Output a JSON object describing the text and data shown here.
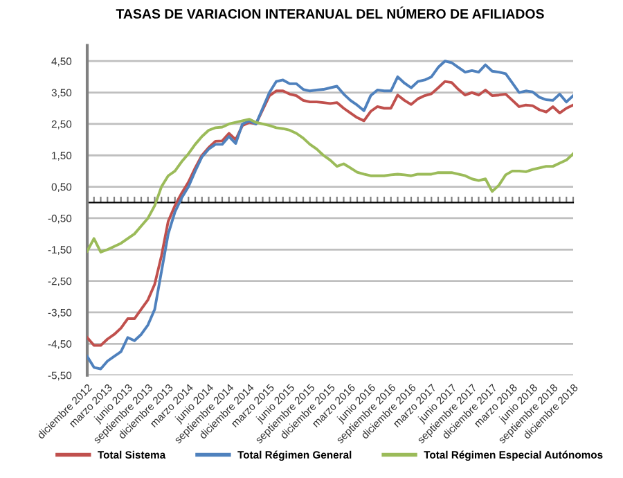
{
  "chart_data": {
    "type": "line",
    "title": "TASAS DE VARIACION INTERANUAL DEL NÚMERO DE AFILIADOS",
    "categories": [
      "diciembre 2012",
      null,
      null,
      "marzo 2013",
      null,
      null,
      "junio 2013",
      null,
      null,
      "septiembre 2013",
      null,
      null,
      "diciembre 2013",
      null,
      null,
      "marzo 2014",
      null,
      null,
      "junio 2014",
      null,
      null,
      "septiembre 2014",
      null,
      null,
      "diciembre 2014",
      null,
      null,
      "marzo 2015",
      null,
      null,
      "junio 2015",
      null,
      null,
      "septiembre 2015",
      null,
      null,
      "diciembre 2015",
      null,
      null,
      "marzo 2016",
      null,
      null,
      "junio 2016",
      null,
      null,
      "septiembre 2016",
      null,
      null,
      "diciembre 2016",
      null,
      null,
      "marzo 2017",
      null,
      null,
      "junio 2017",
      null,
      null,
      "septiembre 2017",
      null,
      null,
      "diciembre 2017",
      null,
      null,
      "marzo 2018",
      null,
      null,
      "junio 2018",
      null,
      null,
      "septiembre 2018",
      null,
      null,
      "diciembre 2018"
    ],
    "series": [
      {
        "name": "Total Sistema",
        "color": "#c0504d",
        "values": [
          -4.3,
          -4.55,
          -4.55,
          -4.35,
          -4.2,
          -4.0,
          -3.7,
          -3.7,
          -3.4,
          -3.1,
          -2.6,
          -1.7,
          -0.6,
          -0.1,
          0.3,
          0.65,
          1.1,
          1.5,
          1.75,
          1.95,
          1.96,
          2.2,
          2.0,
          2.45,
          2.55,
          2.5,
          2.95,
          3.4,
          3.55,
          3.55,
          3.45,
          3.4,
          3.25,
          3.2,
          3.2,
          3.18,
          3.15,
          3.18,
          3.0,
          2.85,
          2.7,
          2.6,
          2.9,
          3.05,
          3.0,
          3.0,
          3.42,
          3.25,
          3.12,
          3.3,
          3.4,
          3.46,
          3.65,
          3.85,
          3.82,
          3.6,
          3.42,
          3.5,
          3.42,
          3.58,
          3.4,
          3.42,
          3.45,
          3.25,
          3.05,
          3.1,
          3.08,
          2.95,
          2.88,
          3.05,
          2.85,
          3.0,
          3.1
        ]
      },
      {
        "name": "Total Régimen General",
        "color": "#4f81bd",
        "values": [
          -4.9,
          -5.25,
          -5.3,
          -5.05,
          -4.9,
          -4.75,
          -4.3,
          -4.4,
          -4.2,
          -3.9,
          -3.4,
          -2.2,
          -1.0,
          -0.3,
          0.15,
          0.5,
          1.0,
          1.45,
          1.7,
          1.85,
          1.85,
          2.1,
          1.88,
          2.5,
          2.6,
          2.5,
          3.0,
          3.5,
          3.85,
          3.9,
          3.78,
          3.78,
          3.6,
          3.55,
          3.58,
          3.6,
          3.65,
          3.7,
          3.45,
          3.25,
          3.1,
          2.92,
          3.4,
          3.58,
          3.55,
          3.55,
          4.0,
          3.8,
          3.65,
          3.85,
          3.9,
          4.0,
          4.3,
          4.5,
          4.45,
          4.3,
          4.15,
          4.2,
          4.15,
          4.38,
          4.18,
          4.15,
          4.1,
          3.8,
          3.5,
          3.55,
          3.52,
          3.35,
          3.27,
          3.25,
          3.45,
          3.2,
          3.4
        ]
      },
      {
        "name": "Total Régimen Especial Autónomos",
        "color": "#9bbb59",
        "values": [
          -1.55,
          -1.15,
          -1.58,
          -1.5,
          -1.4,
          -1.3,
          -1.15,
          -1.0,
          -0.75,
          -0.5,
          -0.1,
          0.5,
          0.85,
          1.0,
          1.3,
          1.55,
          1.85,
          2.1,
          2.3,
          2.38,
          2.4,
          2.5,
          2.55,
          2.6,
          2.65,
          2.55,
          2.5,
          2.45,
          2.38,
          2.35,
          2.3,
          2.2,
          2.05,
          1.85,
          1.7,
          1.5,
          1.35,
          1.15,
          1.23,
          1.1,
          0.96,
          0.9,
          0.85,
          0.85,
          0.85,
          0.88,
          0.9,
          0.88,
          0.85,
          0.9,
          0.9,
          0.9,
          0.95,
          0.95,
          0.95,
          0.9,
          0.85,
          0.75,
          0.7,
          0.75,
          0.35,
          0.55,
          0.88,
          1.0,
          1.0,
          0.98,
          1.05,
          1.1,
          1.15,
          1.15,
          1.25,
          1.35,
          1.55
        ]
      }
    ],
    "ylim": [
      -5.5,
      5.0
    ],
    "yticks": [
      {
        "value": 4.5,
        "label": "4,50"
      },
      {
        "value": 3.5,
        "label": "3,50"
      },
      {
        "value": 2.5,
        "label": "2,50"
      },
      {
        "value": 1.5,
        "label": "1,50"
      },
      {
        "value": 0.5,
        "label": "0,50"
      },
      {
        "value": -0.5,
        "label": "-0,50"
      },
      {
        "value": -1.5,
        "label": "-1,50"
      },
      {
        "value": -2.5,
        "label": "-2,50"
      },
      {
        "value": -3.5,
        "label": "-3,50"
      },
      {
        "value": -4.5,
        "label": "-4,50"
      },
      {
        "value": -5.5,
        "label": "-5,50"
      }
    ],
    "grid": "y",
    "legend": "bottom",
    "marker": "none",
    "line_style": "solid"
  }
}
